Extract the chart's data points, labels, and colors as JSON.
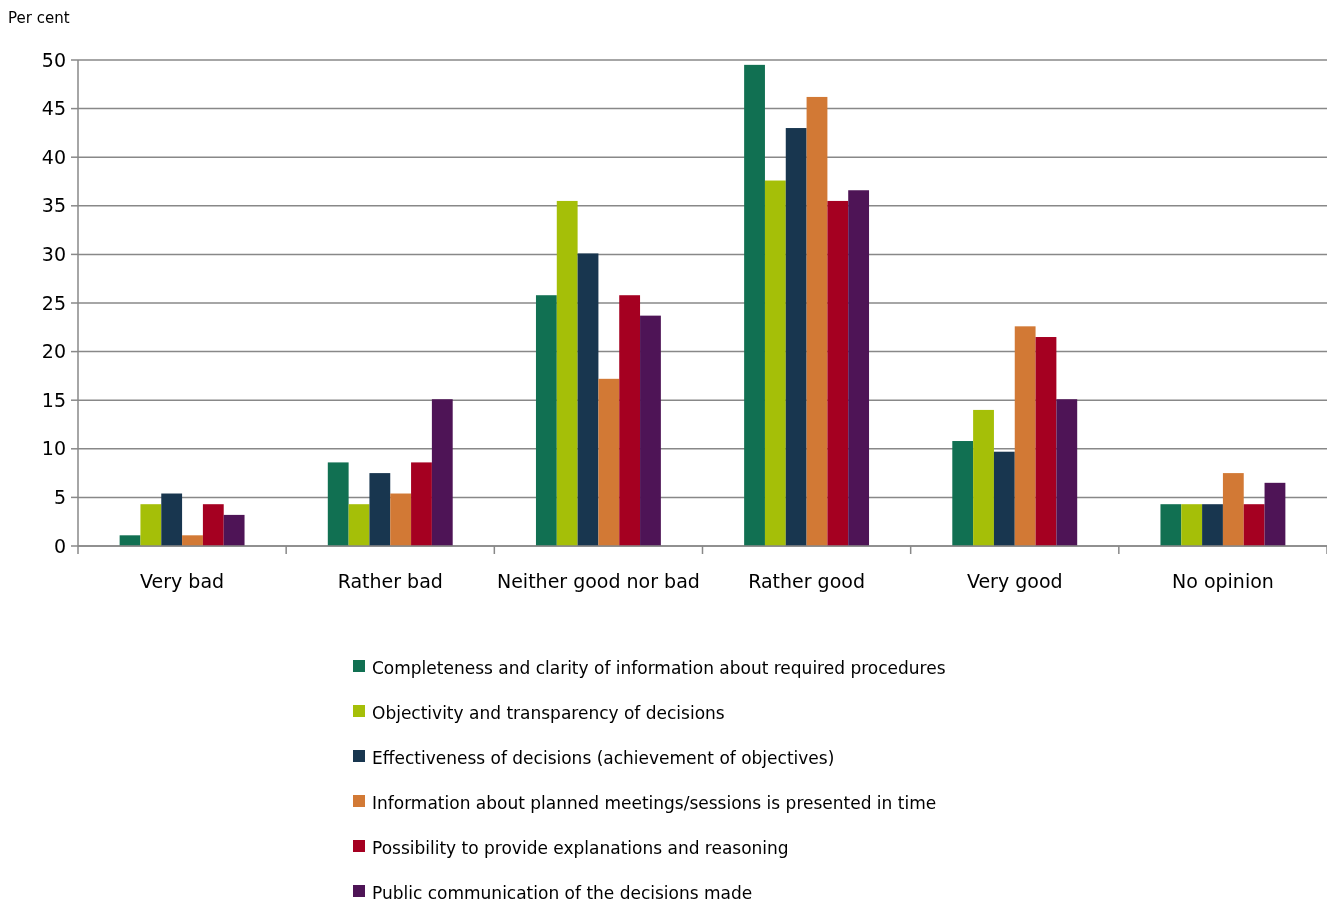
{
  "chart_data": {
    "type": "bar",
    "ylabel": "Per cent",
    "categories": [
      "Very bad",
      "Rather bad",
      "Neither good nor bad",
      "Rather good",
      "Very good",
      "No opinion"
    ],
    "series": [
      {
        "name": "Completeness and clarity of information about required procedures",
        "color": "#117052",
        "values": [
          1.1,
          8.6,
          25.8,
          49.5,
          10.8,
          4.3
        ]
      },
      {
        "name": "Objectivity and transparency of decisions",
        "color": "#a5bf08",
        "values": [
          4.3,
          4.3,
          35.5,
          37.6,
          14.0,
          4.3
        ]
      },
      {
        "name": "Effectiveness of decisions (achievement of objectives)",
        "color": "#18364f",
        "values": [
          5.4,
          7.5,
          30.1,
          43.0,
          9.7,
          4.3
        ]
      },
      {
        "name": "Information about planned meetings/sessions is presented in time",
        "color": "#d27935",
        "values": [
          1.1,
          5.4,
          17.2,
          46.2,
          22.6,
          7.5
        ]
      },
      {
        "name": "Possibility to provide explanations and reasoning",
        "color": "#a50021",
        "values": [
          4.3,
          8.6,
          25.8,
          35.5,
          21.5,
          4.3
        ]
      },
      {
        "name": "Public communication of the decisions made",
        "color": "#4e1456",
        "values": [
          3.2,
          15.1,
          23.7,
          36.6,
          15.1,
          6.5
        ]
      }
    ],
    "ylim": [
      0,
      50
    ],
    "yticks": [
      0,
      5,
      10,
      15,
      20,
      25,
      30,
      35,
      40,
      45,
      50
    ],
    "grid": "y",
    "legend": "bottom"
  }
}
